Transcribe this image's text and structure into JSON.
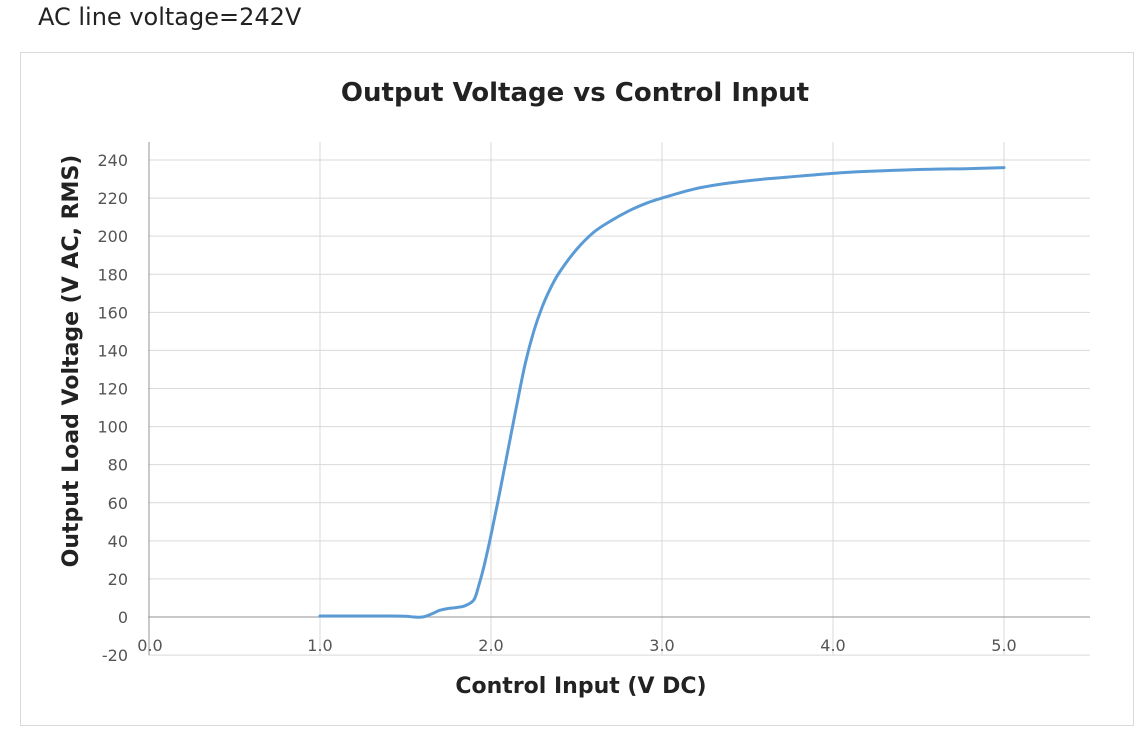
{
  "caption": "AC line voltage=242V",
  "chart_data": {
    "type": "line",
    "title": "Output Voltage vs Control Input",
    "xlabel": "Control Input (V DC)",
    "ylabel": "Output Load Voltage (V AC, RMS)",
    "xlim": [
      0.0,
      5.5
    ],
    "ylim": [
      -20,
      250
    ],
    "x_ticks": [
      "0.0",
      "1.0",
      "2.0",
      "3.0",
      "4.0",
      "5.0"
    ],
    "y_ticks": [
      "-20",
      "0",
      "20",
      "40",
      "60",
      "80",
      "100",
      "120",
      "140",
      "160",
      "180",
      "200",
      "220",
      "240"
    ],
    "grid": true,
    "legend": "none",
    "line_color": "#5b9bd5",
    "series": [
      {
        "x": [
          1.0,
          1.2,
          1.4,
          1.5,
          1.55,
          1.6,
          1.65,
          1.7,
          1.75,
          1.8,
          1.85,
          1.9,
          1.93,
          1.96,
          2.0,
          2.05,
          2.1,
          2.15,
          2.2,
          2.25,
          2.3,
          2.35,
          2.4,
          2.5,
          2.6,
          2.7,
          2.8,
          2.9,
          3.0,
          3.2,
          3.4,
          3.6,
          3.8,
          4.0,
          4.2,
          4.5,
          4.8,
          5.0
        ],
        "y": [
          0.5,
          0.5,
          0.5,
          0.4,
          0.0,
          0.0,
          1.5,
          3.5,
          4.5,
          5.0,
          6.0,
          9.0,
          17.0,
          27.0,
          43.0,
          65.0,
          88.0,
          111.0,
          133.0,
          150.0,
          163.0,
          173.0,
          181.0,
          193.0,
          202.0,
          208.0,
          213.0,
          217.0,
          220.0,
          225.0,
          228.0,
          230.0,
          231.5,
          233.0,
          234.0,
          235.0,
          235.5,
          236.0
        ]
      }
    ]
  }
}
